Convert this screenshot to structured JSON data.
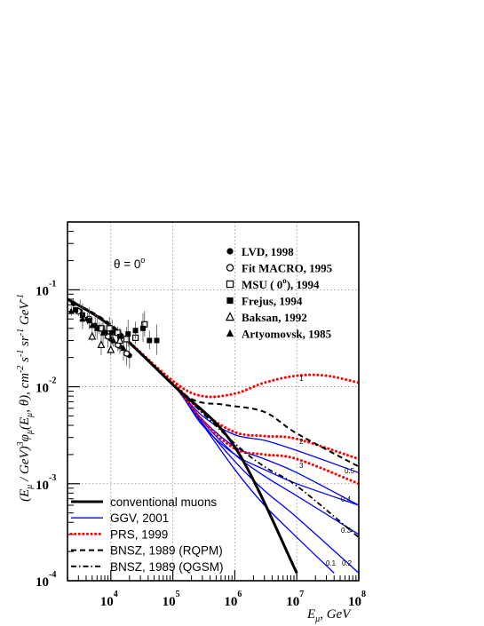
{
  "chart_data": {
    "type": "line",
    "title": "",
    "annotation": "θ = 0°",
    "xlabel_main": "E",
    "xlabel_sub": "μ",
    "xlabel_unit": ",   GeV",
    "ylabel": "(E_μ / GeV)^3 φ_μ(E_μ, θ),  cm^-2 s^-1 sr^-1 GeV^-1",
    "log_x": true,
    "log_y": true,
    "xlim": [
      2000,
      100000000
    ],
    "ylim": [
      0.0001,
      0.5
    ],
    "x_ticks": [
      {
        "base": "10",
        "exp": "4",
        "value": 10000
      },
      {
        "base": "10",
        "exp": "5",
        "value": 100000
      },
      {
        "base": "10",
        "exp": "6",
        "value": 1000000
      },
      {
        "base": "10",
        "exp": "7",
        "value": 10000000
      },
      {
        "base": "10",
        "exp": "8",
        "value": 100000000
      }
    ],
    "y_ticks": [
      {
        "base": "10",
        "exp": "-1",
        "value": 0.1
      },
      {
        "base": "10",
        "exp": "-2",
        "value": 0.01
      },
      {
        "base": "10",
        "exp": "-3",
        "value": 0.001
      },
      {
        "base": "10",
        "exp": "-4",
        "value": 0.0001
      }
    ],
    "grid": true,
    "experiments": [
      {
        "label": "LVD, 1998",
        "marker": "filled-circle",
        "points": [
          [
            2500,
            0.072
          ],
          [
            3200,
            0.06
          ],
          [
            4200,
            0.05
          ],
          [
            5600,
            0.043
          ],
          [
            7500,
            0.038
          ],
          [
            10000,
            0.031
          ],
          [
            14000,
            0.026
          ],
          [
            20000,
            0.021
          ]
        ]
      },
      {
        "label": "Fit MACRO, 1995",
        "marker": "open-circle",
        "points": [
          [
            3000,
            0.06
          ],
          [
            4500,
            0.05
          ],
          [
            6500,
            0.04
          ],
          [
            9000,
            0.033
          ],
          [
            13000,
            0.027
          ],
          [
            18000,
            0.022
          ]
        ]
      },
      {
        "label": "MSU ( 0",
        "label_sup": "o",
        "label_tail": "), 1994",
        "marker": "open-square",
        "points": [
          [
            7000,
            0.04
          ],
          [
            9500,
            0.04
          ],
          [
            13000,
            0.036
          ],
          [
            18000,
            0.031
          ],
          [
            25000,
            0.032
          ],
          [
            35000,
            0.044
          ]
        ]
      },
      {
        "label": "Frejus, 1994",
        "marker": "filled-square",
        "points": [
          [
            2700,
            0.062
          ],
          [
            3500,
            0.055
          ],
          [
            4500,
            0.048
          ],
          [
            6000,
            0.04
          ],
          [
            8000,
            0.036
          ],
          [
            10500,
            0.036
          ],
          [
            14000,
            0.033
          ],
          [
            19000,
            0.035
          ],
          [
            25000,
            0.038
          ],
          [
            33000,
            0.04
          ],
          [
            42000,
            0.03
          ],
          [
            55000,
            0.03
          ]
        ]
      },
      {
        "label": "Baksan, 1992",
        "marker": "open-triangle",
        "points": [
          [
            5000,
            0.033
          ],
          [
            7000,
            0.027
          ],
          [
            10000,
            0.024
          ],
          [
            14000,
            0.03
          ]
        ]
      },
      {
        "label": "Artyomovsk, 1985",
        "marker": "filled-triangle",
        "points": [
          [
            2300,
            0.06
          ],
          [
            3500,
            0.05
          ],
          [
            5000,
            0.043
          ],
          [
            7500,
            0.036
          ],
          [
            11000,
            0.03
          ],
          [
            16000,
            0.025
          ]
        ]
      }
    ],
    "series": [
      {
        "name": "conventional muons",
        "style": "solid-thick",
        "color": "#000000",
        "points": [
          [
            2000,
            0.08
          ],
          [
            10000,
            0.042
          ],
          [
            100000,
            0.0105
          ],
          [
            1000000,
            0.0024
          ],
          [
            10000000,
            0.00012
          ]
        ]
      },
      {
        "name": "GGV, 2001",
        "style": "solid-thin",
        "color": "#0000ff"
      },
      {
        "name": "PRS, 1999",
        "style": "dotted",
        "color": "#ff0000"
      },
      {
        "name": "BNSZ, 1989 (RQPM)",
        "style": "dashed",
        "color": "#000000",
        "points": [
          [
            2000,
            0.08
          ],
          [
            10000,
            0.044
          ],
          [
            50000,
            0.016
          ],
          [
            200000,
            0.0075
          ],
          [
            700000,
            0.0065
          ],
          [
            3000000,
            0.0055
          ],
          [
            10000000,
            0.0033
          ],
          [
            100000000,
            0.0015
          ]
        ]
      },
      {
        "name": "BNSZ, 1989 (QGSM)",
        "style": "dashdot",
        "color": "#000000",
        "points": [
          [
            2000,
            0.08
          ],
          [
            10000,
            0.042
          ],
          [
            100000,
            0.0105
          ],
          [
            1000000,
            0.0026
          ],
          [
            3000000,
            0.0015
          ],
          [
            10000000,
            0.00095
          ],
          [
            100000000,
            0.00028
          ]
        ]
      }
    ],
    "ggv_curves": [
      {
        "label": "0.5",
        "points": [
          [
            2000,
            0.08
          ],
          [
            10000,
            0.042
          ],
          [
            100000,
            0.0105
          ],
          [
            300000,
            0.005
          ],
          [
            1000000,
            0.0032
          ],
          [
            3000000,
            0.0028
          ],
          [
            10000000,
            0.0022
          ],
          [
            100000000,
            0.0013
          ]
        ]
      },
      {
        "label": "0.4",
        "points": [
          [
            2000,
            0.08
          ],
          [
            10000,
            0.042
          ],
          [
            100000,
            0.0105
          ],
          [
            300000,
            0.0046
          ],
          [
            1000000,
            0.0024
          ],
          [
            3000000,
            0.0018
          ],
          [
            10000000,
            0.0013
          ],
          [
            100000000,
            0.0006
          ]
        ]
      },
      {
        "label": "0.3",
        "points": [
          [
            2000,
            0.08
          ],
          [
            10000,
            0.042
          ],
          [
            100000,
            0.0105
          ],
          [
            300000,
            0.0044
          ],
          [
            1000000,
            0.002
          ],
          [
            3000000,
            0.0012
          ],
          [
            10000000,
            0.00075
          ],
          [
            100000000,
            0.0003
          ]
        ]
      },
      {
        "label": "0.2",
        "points": [
          [
            2000,
            0.08
          ],
          [
            10000,
            0.042
          ],
          [
            100000,
            0.0105
          ],
          [
            300000,
            0.0042
          ],
          [
            1000000,
            0.0017
          ],
          [
            3000000,
            0.00085
          ],
          [
            10000000,
            0.00045
          ],
          [
            100000000,
            0.00012
          ]
        ]
      },
      {
        "label": "0.1",
        "points": [
          [
            2000,
            0.08
          ],
          [
            10000,
            0.042
          ],
          [
            100000,
            0.0105
          ],
          [
            300000,
            0.0041
          ],
          [
            1000000,
            0.0014
          ],
          [
            3000000,
            0.0006
          ],
          [
            10000000,
            0.00028
          ],
          [
            40000000,
            0.00012
          ]
        ]
      },
      {
        "label": "",
        "points": [
          [
            2000,
            0.08
          ],
          [
            10000,
            0.042
          ],
          [
            100000,
            0.0105
          ],
          [
            300000,
            0.004
          ],
          [
            1000000,
            0.002
          ],
          [
            3000000,
            0.0014
          ],
          [
            10000000,
            0.001
          ],
          [
            100000000,
            0.0006
          ]
        ]
      }
    ],
    "prs_curves": [
      {
        "label": "1",
        "points": [
          [
            2000,
            0.08
          ],
          [
            10000,
            0.042
          ],
          [
            100000,
            0.0115
          ],
          [
            300000,
            0.008
          ],
          [
            1000000,
            0.0085
          ],
          [
            3000000,
            0.011
          ],
          [
            10000000,
            0.013
          ],
          [
            30000000,
            0.013
          ],
          [
            100000000,
            0.011
          ]
        ]
      },
      {
        "label": "2",
        "points": [
          [
            2000,
            0.08
          ],
          [
            10000,
            0.042
          ],
          [
            100000,
            0.011
          ],
          [
            300000,
            0.0055
          ],
          [
            1000000,
            0.0034
          ],
          [
            3000000,
            0.0031
          ],
          [
            10000000,
            0.0029
          ],
          [
            100000000,
            0.0018
          ]
        ]
      },
      {
        "label": "3",
        "points": [
          [
            2000,
            0.08
          ],
          [
            10000,
            0.042
          ],
          [
            100000,
            0.0107
          ],
          [
            300000,
            0.0045
          ],
          [
            1000000,
            0.0023
          ],
          [
            3000000,
            0.002
          ],
          [
            10000000,
            0.0018
          ],
          [
            100000000,
            0.001
          ]
        ]
      }
    ]
  }
}
